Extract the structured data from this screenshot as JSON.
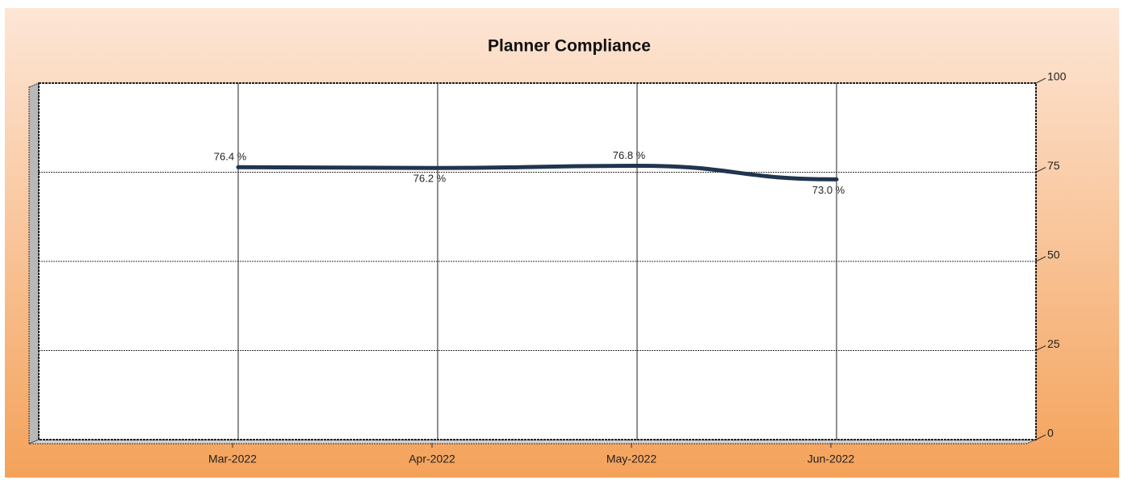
{
  "chart_data": {
    "type": "line",
    "title": "Planner Compliance",
    "categories": [
      "Mar-2022",
      "Apr-2022",
      "May-2022",
      "Jun-2022"
    ],
    "series": [
      {
        "name": "Planner Compliance",
        "color": "#1f3550",
        "values": [
          76.4,
          76.2,
          76.8,
          73.0
        ],
        "value_labels": [
          "76.4 %",
          "76.2 %",
          "76.8 %",
          "73.0 %"
        ]
      }
    ],
    "ylim": [
      0,
      100
    ],
    "yticks": [
      0,
      25,
      50,
      75,
      100
    ],
    "grid": true,
    "y_axis_side": "right"
  }
}
